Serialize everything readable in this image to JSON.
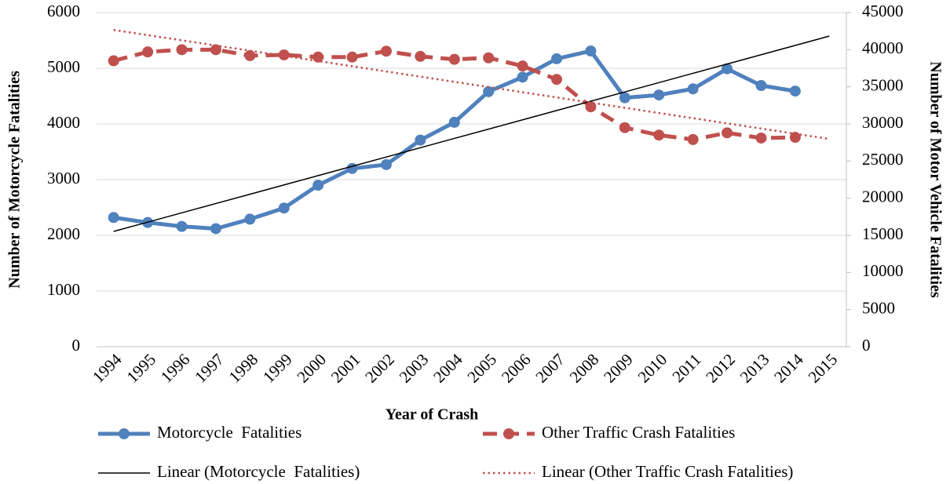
{
  "chart_data": {
    "type": "line",
    "x_label": "Year of Crash",
    "y_label": "Number of Motorcycle Fatalities",
    "y2_label": "Number of Motor Vehicle Fatalities",
    "categories": [
      "1994",
      "1995",
      "1996",
      "1997",
      "1998",
      "1999",
      "2000",
      "2001",
      "2002",
      "2003",
      "2004",
      "2005",
      "2006",
      "2007",
      "2008",
      "2009",
      "2010",
      "2011",
      "2012",
      "2013",
      "2014",
      "2015"
    ],
    "ylim": [
      0,
      6000
    ],
    "yticks": [
      0,
      1000,
      2000,
      3000,
      4000,
      5000,
      6000
    ],
    "y2lim": [
      0,
      45000
    ],
    "y2ticks": [
      0,
      5000,
      10000,
      15000,
      20000,
      25000,
      30000,
      35000,
      40000,
      45000
    ],
    "grid": true,
    "series": [
      {
        "name": "Motorcycle  Fatalities",
        "color": "#4f81bd",
        "dash": "solid",
        "marker": true,
        "width": 5,
        "values": [
          2320,
          2230,
          2160,
          2120,
          2290,
          2490,
          2900,
          3200,
          3270,
          3710,
          4030,
          4580,
          4840,
          5170,
          5310,
          4470,
          4520,
          4630,
          4990,
          4690,
          4590,
          null
        ]
      },
      {
        "name": "Other Traffic Crash Fatalities",
        "color": "#c0504d",
        "dash": "dashed",
        "marker": true,
        "width": 5,
        "axis": "y2",
        "values": [
          38500,
          39700,
          40000,
          40000,
          39200,
          39300,
          39000,
          39000,
          39800,
          39100,
          38700,
          38900,
          37800,
          36000,
          32300,
          29500,
          28500,
          27900,
          28800,
          28100,
          28200,
          null
        ]
      },
      {
        "name": "Linear (Motorcycle  Fatalities)",
        "color": "#000000",
        "dash": "solid",
        "marker": false,
        "width": 1.5,
        "values": [
          2070,
          2237,
          2404,
          2571,
          2738,
          2905,
          3072,
          3239,
          3406,
          3573,
          3740,
          3907,
          4074,
          4241,
          4408,
          4575,
          4742,
          4909,
          5076,
          5243,
          5410,
          5577
        ]
      },
      {
        "name": "Linear (Other Traffic Crash Fatalities)",
        "color": "#c0504d",
        "dash": "dotted",
        "marker": false,
        "width": 2.5,
        "axis": "y2",
        "values": [
          42660,
          41961,
          41262,
          40563,
          39864,
          39165,
          38466,
          37767,
          37068,
          36369,
          35670,
          34971,
          34272,
          33573,
          32874,
          32175,
          31476,
          30777,
          30078,
          29379,
          28680,
          27981
        ]
      }
    ]
  }
}
